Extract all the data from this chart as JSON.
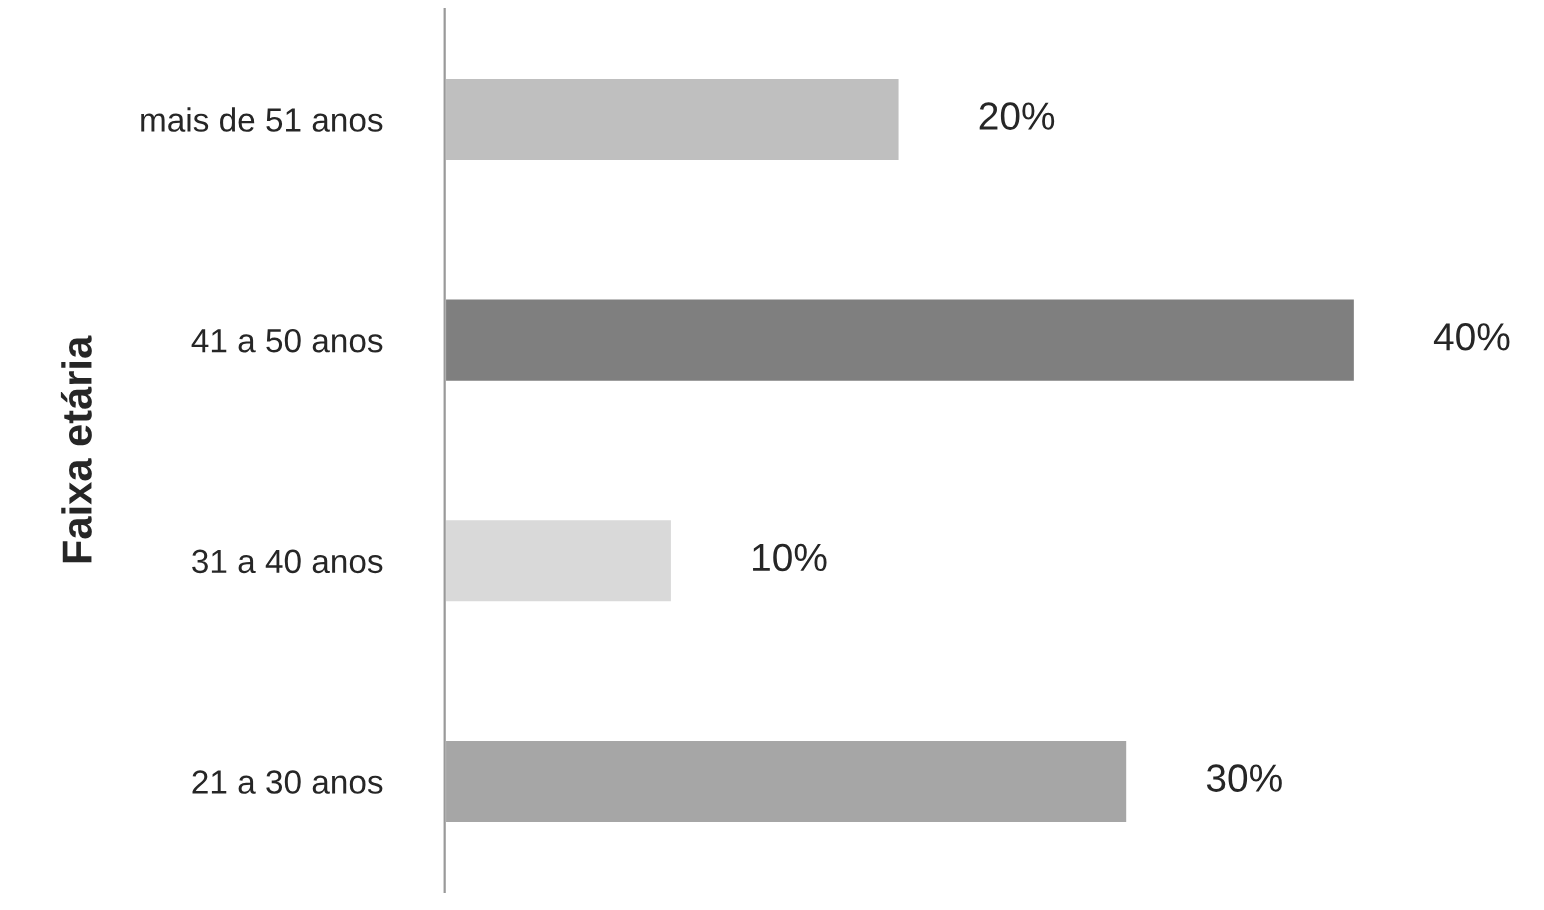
{
  "chart_data": {
    "type": "bar",
    "orientation": "horizontal",
    "ylabel": "Faixa etária",
    "categories": [
      "mais de 51 anos",
      "41 a 50 anos",
      "31 a 40 anos",
      "21 a 30 anos"
    ],
    "values": [
      20,
      40,
      10,
      30
    ],
    "colors": [
      "#bfbfbf",
      "#7f7f7f",
      "#d9d9d9",
      "#a6a6a6"
    ],
    "value_labels": [
      "20%",
      "40%",
      "10%",
      "30%"
    ],
    "grid": false,
    "legend": false
  }
}
